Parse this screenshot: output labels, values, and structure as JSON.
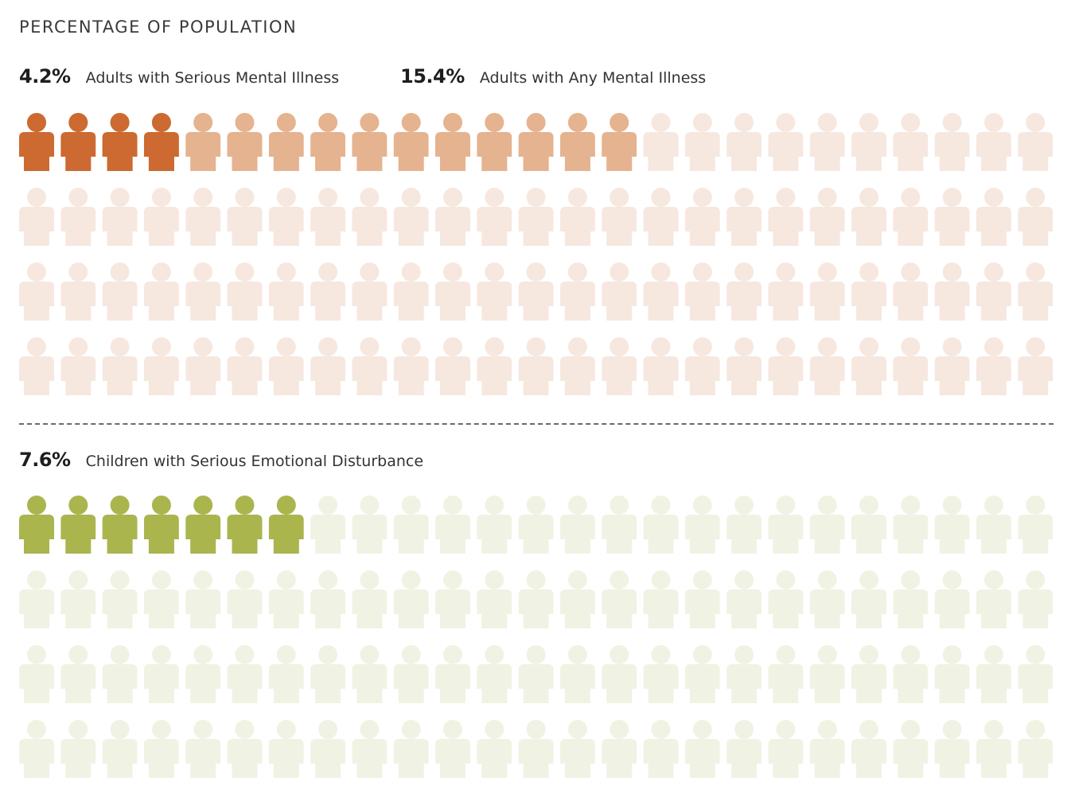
{
  "title": "PERCENTAGE OF POPULATION",
  "adults": {
    "serious": {
      "value": "4.2%",
      "label": "Adults with Serious Mental Illness"
    },
    "any": {
      "value": "15.4%",
      "label": "Adults with Any Mental Illness"
    }
  },
  "children": {
    "serious": {
      "value": "7.6%",
      "label": "Children with Serious Emotional Disturbance"
    }
  },
  "colors": {
    "adult_serious": "#cc6a31",
    "adult_any": "#e5b38f",
    "adult_base": "#f6e8df",
    "child_serious": "#aab54e",
    "child_base": "#f0f3e3"
  },
  "chart_data": [
    {
      "type": "pictograph",
      "total": 100,
      "series": [
        {
          "name": "Adults with Serious Mental Illness",
          "value": 4.2
        },
        {
          "name": "Adults with Any Mental Illness",
          "value": 15.4
        }
      ]
    },
    {
      "type": "pictograph",
      "total": 100,
      "series": [
        {
          "name": "Children with Serious Emotional Disturbance",
          "value": 7.6
        }
      ]
    }
  ]
}
